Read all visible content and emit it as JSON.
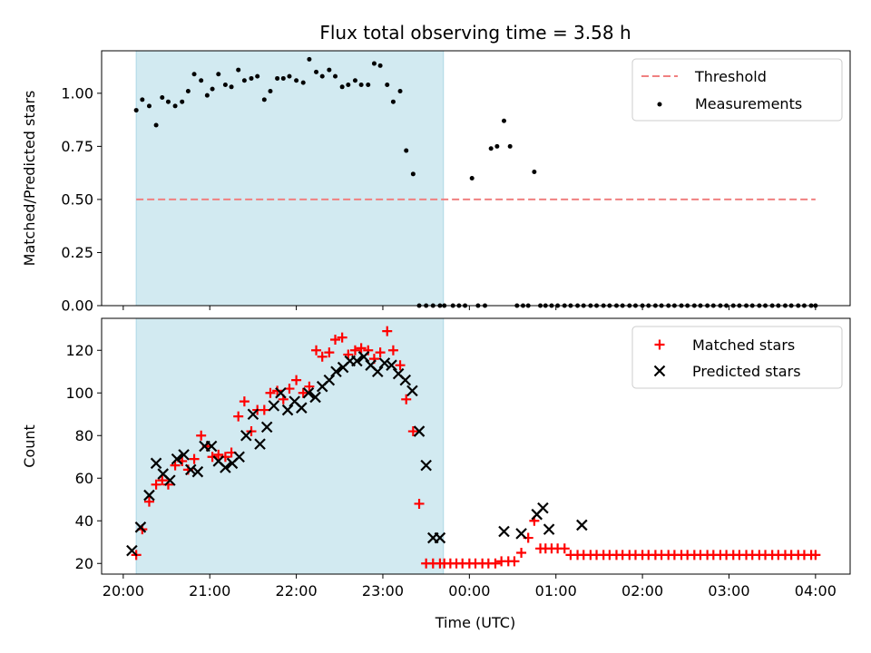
{
  "title": "Flux total observing time = 3.58 h",
  "xlabel": "Time (UTC)",
  "x_ticks": [
    "20:00",
    "21:00",
    "22:00",
    "23:00",
    "00:00",
    "01:00",
    "02:00",
    "03:00",
    "04:00"
  ],
  "colors": {
    "shade": "#add8e6",
    "threshold": "#f08080",
    "measurements": "#000000",
    "matched": "#ff0000",
    "predicted": "#000000"
  },
  "chart_data": [
    {
      "type": "scatter",
      "ylabel": "Matched/Predicted stars",
      "x_unit": "hours since 20:00 UTC",
      "xlim": [
        -0.25,
        8.4
      ],
      "ylim": [
        0,
        1.2
      ],
      "y_ticks": [
        "0.00",
        "0.25",
        "0.50",
        "0.75",
        "1.00"
      ],
      "shaded_span": [
        0.15,
        3.7
      ],
      "legend": {
        "position": "upper-right",
        "entries": [
          "Threshold",
          "Measurements"
        ]
      },
      "threshold": {
        "name": "Threshold",
        "y": 0.5,
        "x_range": [
          0.15,
          8.0
        ]
      },
      "measurements": {
        "name": "Measurements",
        "x": [
          0.15,
          0.22,
          0.3,
          0.38,
          0.45,
          0.52,
          0.6,
          0.68,
          0.75,
          0.82,
          0.9,
          0.97,
          1.03,
          1.1,
          1.18,
          1.25,
          1.33,
          1.4,
          1.48,
          1.55,
          1.63,
          1.7,
          1.78,
          1.85,
          1.92,
          2.0,
          2.08,
          2.15,
          2.23,
          2.3,
          2.38,
          2.45,
          2.53,
          2.6,
          2.68,
          2.75,
          2.83,
          2.9,
          2.97,
          3.05,
          3.12,
          3.2,
          3.27,
          3.35,
          3.42,
          3.5,
          3.58,
          3.66,
          3.71,
          3.81,
          3.88,
          3.95,
          4.03,
          4.1,
          4.18,
          4.25,
          4.32,
          4.4,
          4.47,
          4.55,
          4.62,
          4.68,
          4.75,
          4.82,
          4.88,
          4.95,
          5.02,
          5.1,
          5.17,
          5.25,
          5.32,
          5.4,
          5.47,
          5.55,
          5.62,
          5.7,
          5.77,
          5.85,
          5.92,
          6.0,
          6.07,
          6.15,
          6.22,
          6.3,
          6.37,
          6.45,
          6.52,
          6.6,
          6.67,
          6.75,
          6.82,
          6.9,
          6.97,
          7.05,
          7.12,
          7.2,
          7.27,
          7.35,
          7.42,
          7.5,
          7.57,
          7.65,
          7.72,
          7.8,
          7.87,
          7.95,
          8.0
        ],
        "y": [
          0.92,
          0.97,
          0.94,
          0.85,
          0.98,
          0.96,
          0.94,
          0.96,
          1.01,
          1.09,
          1.06,
          0.99,
          1.02,
          1.09,
          1.04,
          1.03,
          1.11,
          1.06,
          1.07,
          1.08,
          0.97,
          1.01,
          1.07,
          1.07,
          1.08,
          1.06,
          1.05,
          1.16,
          1.1,
          1.08,
          1.11,
          1.08,
          1.03,
          1.04,
          1.06,
          1.04,
          1.04,
          1.14,
          1.13,
          1.04,
          0.96,
          1.01,
          0.73,
          0.62,
          0,
          0,
          0,
          0,
          0,
          0,
          0,
          0,
          0.6,
          0,
          0,
          0.74,
          0.75,
          0.87,
          0.75,
          0,
          0,
          0,
          0.63,
          0,
          0,
          0,
          0,
          0,
          0,
          0,
          0,
          0,
          0,
          0,
          0,
          0,
          0,
          0,
          0,
          0,
          0,
          0,
          0,
          0,
          0,
          0,
          0,
          0,
          0,
          0,
          0,
          0,
          0,
          0,
          0,
          0,
          0,
          0,
          0,
          0,
          0,
          0,
          0,
          0,
          0,
          0,
          0
        ]
      }
    },
    {
      "type": "scatter",
      "ylabel": "Count",
      "x_unit": "hours since 20:00 UTC",
      "xlim": [
        -0.25,
        8.4
      ],
      "ylim": [
        15,
        135
      ],
      "y_ticks": [
        "20",
        "40",
        "60",
        "80",
        "100",
        "120"
      ],
      "shaded_span": [
        0.15,
        3.7
      ],
      "legend": {
        "position": "upper-right",
        "entries": [
          "Matched stars",
          "Predicted stars"
        ]
      },
      "series": [
        {
          "name": "Matched stars",
          "marker": "plus",
          "x": [
            0.15,
            0.22,
            0.3,
            0.38,
            0.45,
            0.52,
            0.6,
            0.68,
            0.75,
            0.82,
            0.9,
            0.97,
            1.03,
            1.1,
            1.18,
            1.25,
            1.33,
            1.4,
            1.48,
            1.55,
            1.63,
            1.7,
            1.78,
            1.85,
            1.92,
            2.0,
            2.08,
            2.15,
            2.23,
            2.3,
            2.38,
            2.45,
            2.53,
            2.6,
            2.68,
            2.75,
            2.83,
            2.9,
            2.97,
            3.05,
            3.12,
            3.2,
            3.27,
            3.35,
            3.42,
            3.5,
            3.58,
            3.66,
            3.71,
            3.78,
            3.85,
            3.92,
            4.0,
            4.07,
            4.15,
            4.22,
            4.3,
            4.37,
            4.45,
            4.52,
            4.6,
            4.68,
            4.75,
            4.82,
            4.88,
            4.95,
            5.02,
            5.1,
            5.17,
            5.25,
            5.32,
            5.4,
            5.47,
            5.55,
            5.62,
            5.7,
            5.77,
            5.85,
            5.92,
            6.0,
            6.07,
            6.15,
            6.22,
            6.3,
            6.37,
            6.45,
            6.52,
            6.6,
            6.67,
            6.75,
            6.82,
            6.9,
            6.97,
            7.05,
            7.12,
            7.2,
            7.27,
            7.35,
            7.42,
            7.5,
            7.57,
            7.65,
            7.72,
            7.8,
            7.87,
            7.95,
            8.0
          ],
          "y": [
            24,
            36,
            49,
            57,
            59,
            57,
            66,
            68,
            64,
            69,
            80,
            75,
            70,
            71,
            70,
            72,
            89,
            96,
            82,
            92,
            92,
            100,
            101,
            97,
            102,
            106,
            100,
            103,
            120,
            117,
            119,
            125,
            126,
            118,
            120,
            121,
            120,
            116,
            119,
            129,
            120,
            113,
            97,
            82,
            48,
            20,
            20,
            20,
            20,
            20,
            20,
            20,
            20,
            20,
            20,
            20,
            20,
            21,
            21,
            21,
            25,
            32,
            40,
            27,
            27,
            27,
            27,
            27,
            24,
            24,
            24,
            24,
            24,
            24,
            24,
            24,
            24,
            24,
            24,
            24,
            24,
            24,
            24,
            24,
            24,
            24,
            24,
            24,
            24,
            24,
            24,
            24,
            24,
            24,
            24,
            24,
            24,
            24,
            24,
            24,
            24,
            24,
            24,
            24,
            24,
            24,
            24
          ]
        },
        {
          "name": "Predicted stars",
          "marker": "x",
          "x": [
            0.1,
            0.2,
            0.3,
            0.38,
            0.46,
            0.54,
            0.62,
            0.7,
            0.78,
            0.86,
            0.94,
            1.02,
            1.1,
            1.18,
            1.26,
            1.34,
            1.42,
            1.5,
            1.58,
            1.66,
            1.74,
            1.82,
            1.9,
            1.98,
            2.06,
            2.14,
            2.22,
            2.3,
            2.38,
            2.46,
            2.54,
            2.62,
            2.7,
            2.78,
            2.86,
            2.94,
            3.02,
            3.1,
            3.18,
            3.26,
            3.34,
            3.42,
            3.5,
            3.58,
            3.66,
            4.4,
            4.6,
            4.78,
            4.85,
            4.92,
            5.3
          ],
          "y": [
            26,
            37,
            52,
            67,
            62,
            59,
            69,
            71,
            64,
            63,
            75,
            75,
            68,
            65,
            67,
            70,
            80,
            90,
            76,
            84,
            94,
            100,
            92,
            96,
            93,
            100,
            98,
            103,
            106,
            110,
            112,
            115,
            115,
            117,
            113,
            110,
            114,
            113,
            109,
            106,
            101,
            82,
            66,
            32,
            32,
            35,
            34,
            43,
            46,
            36,
            38
          ]
        }
      ]
    }
  ]
}
